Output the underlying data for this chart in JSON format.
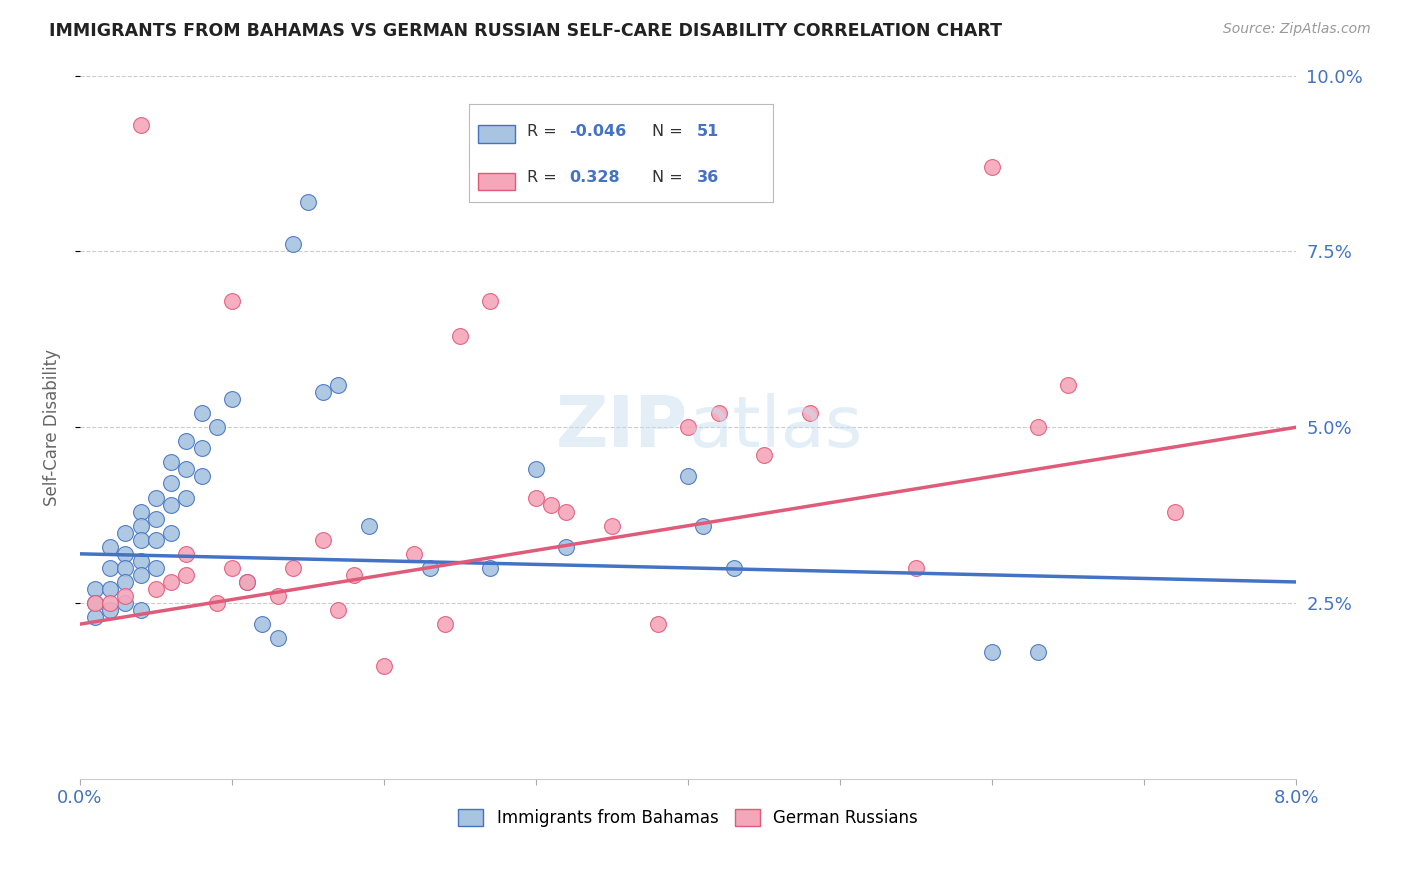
{
  "title": "IMMIGRANTS FROM BAHAMAS VS GERMAN RUSSIAN SELF-CARE DISABILITY CORRELATION CHART",
  "source": "Source: ZipAtlas.com",
  "ylabel": "Self-Care Disability",
  "xlim": [
    0.0,
    0.08
  ],
  "ylim": [
    0.0,
    0.1
  ],
  "legend1_label": "Immigrants from Bahamas",
  "legend2_label": "German Russians",
  "r1": -0.046,
  "n1": 51,
  "r2": 0.328,
  "n2": 36,
  "color1": "#a8c4e0",
  "color2": "#f4a7b9",
  "line_color1": "#4472c4",
  "line_color2": "#e05a7a",
  "background_color": "#ffffff",
  "grid_color": "#cccccc",
  "scatter1_x": [
    0.001,
    0.001,
    0.001,
    0.002,
    0.002,
    0.002,
    0.002,
    0.003,
    0.003,
    0.003,
    0.003,
    0.003,
    0.004,
    0.004,
    0.004,
    0.004,
    0.004,
    0.004,
    0.005,
    0.005,
    0.005,
    0.005,
    0.006,
    0.006,
    0.006,
    0.006,
    0.007,
    0.007,
    0.007,
    0.008,
    0.008,
    0.008,
    0.009,
    0.01,
    0.011,
    0.012,
    0.013,
    0.014,
    0.015,
    0.016,
    0.017,
    0.019,
    0.023,
    0.027,
    0.03,
    0.032,
    0.04,
    0.041,
    0.043,
    0.06,
    0.063
  ],
  "scatter1_y": [
    0.027,
    0.025,
    0.023,
    0.033,
    0.03,
    0.027,
    0.024,
    0.035,
    0.032,
    0.03,
    0.028,
    0.025,
    0.038,
    0.036,
    0.034,
    0.031,
    0.029,
    0.024,
    0.04,
    0.037,
    0.034,
    0.03,
    0.045,
    0.042,
    0.039,
    0.035,
    0.048,
    0.044,
    0.04,
    0.052,
    0.047,
    0.043,
    0.05,
    0.054,
    0.028,
    0.022,
    0.02,
    0.076,
    0.082,
    0.055,
    0.056,
    0.036,
    0.03,
    0.03,
    0.044,
    0.033,
    0.043,
    0.036,
    0.03,
    0.018,
    0.018
  ],
  "scatter2_x": [
    0.001,
    0.002,
    0.003,
    0.004,
    0.005,
    0.006,
    0.007,
    0.007,
    0.009,
    0.01,
    0.01,
    0.011,
    0.013,
    0.014,
    0.016,
    0.017,
    0.018,
    0.02,
    0.022,
    0.024,
    0.025,
    0.027,
    0.03,
    0.031,
    0.032,
    0.035,
    0.038,
    0.04,
    0.042,
    0.045,
    0.048,
    0.055,
    0.06,
    0.063,
    0.065,
    0.072
  ],
  "scatter2_y": [
    0.025,
    0.025,
    0.026,
    0.093,
    0.027,
    0.028,
    0.032,
    0.029,
    0.025,
    0.068,
    0.03,
    0.028,
    0.026,
    0.03,
    0.034,
    0.024,
    0.029,
    0.016,
    0.032,
    0.022,
    0.063,
    0.068,
    0.04,
    0.039,
    0.038,
    0.036,
    0.022,
    0.05,
    0.052,
    0.046,
    0.052,
    0.03,
    0.087,
    0.05,
    0.056,
    0.038
  ]
}
